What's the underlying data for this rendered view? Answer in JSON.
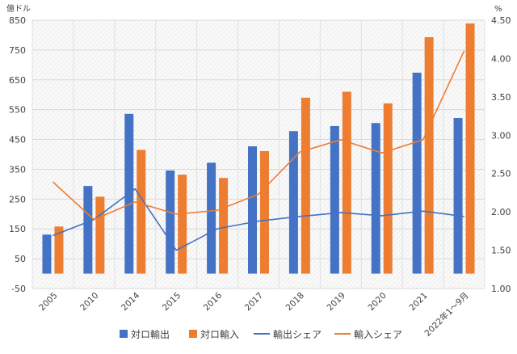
{
  "chart_data": {
    "type": "bar",
    "categories": [
      "2005",
      "2010",
      "2014",
      "2015",
      "2016",
      "2017",
      "2018",
      "2019",
      "2020",
      "2021",
      "2022年1～9月"
    ],
    "left_axis": {
      "unit": "億ドル",
      "min": -50,
      "max": 850,
      "step": 100
    },
    "right_axis": {
      "unit": "%",
      "min": 1.0,
      "max": 4.5,
      "step": 0.5
    },
    "grid": true,
    "legend_position": "bottom",
    "series": [
      {
        "name": "対ロ輸出",
        "type": "bar",
        "axis": "left",
        "color": "#4472C4",
        "values": [
          131,
          294,
          536,
          346,
          372,
          427,
          478,
          495,
          505,
          674,
          522
        ]
      },
      {
        "name": "対ロ輸入",
        "type": "bar",
        "axis": "left",
        "color": "#ED7D31",
        "values": [
          158,
          258,
          415,
          332,
          321,
          411,
          590,
          610,
          571,
          793,
          839
        ]
      },
      {
        "name": "輸出シェア",
        "type": "line",
        "axis": "right",
        "color": "#4472C4",
        "values": [
          1.69,
          1.9,
          2.3,
          1.5,
          1.78,
          1.88,
          1.94,
          1.99,
          1.95,
          2.01,
          1.94
        ]
      },
      {
        "name": "輸入シェア",
        "type": "line",
        "axis": "right",
        "color": "#ED7D31",
        "values": [
          2.39,
          1.9,
          2.13,
          1.97,
          2.02,
          2.23,
          2.78,
          2.94,
          2.77,
          2.94,
          4.1
        ]
      }
    ]
  }
}
